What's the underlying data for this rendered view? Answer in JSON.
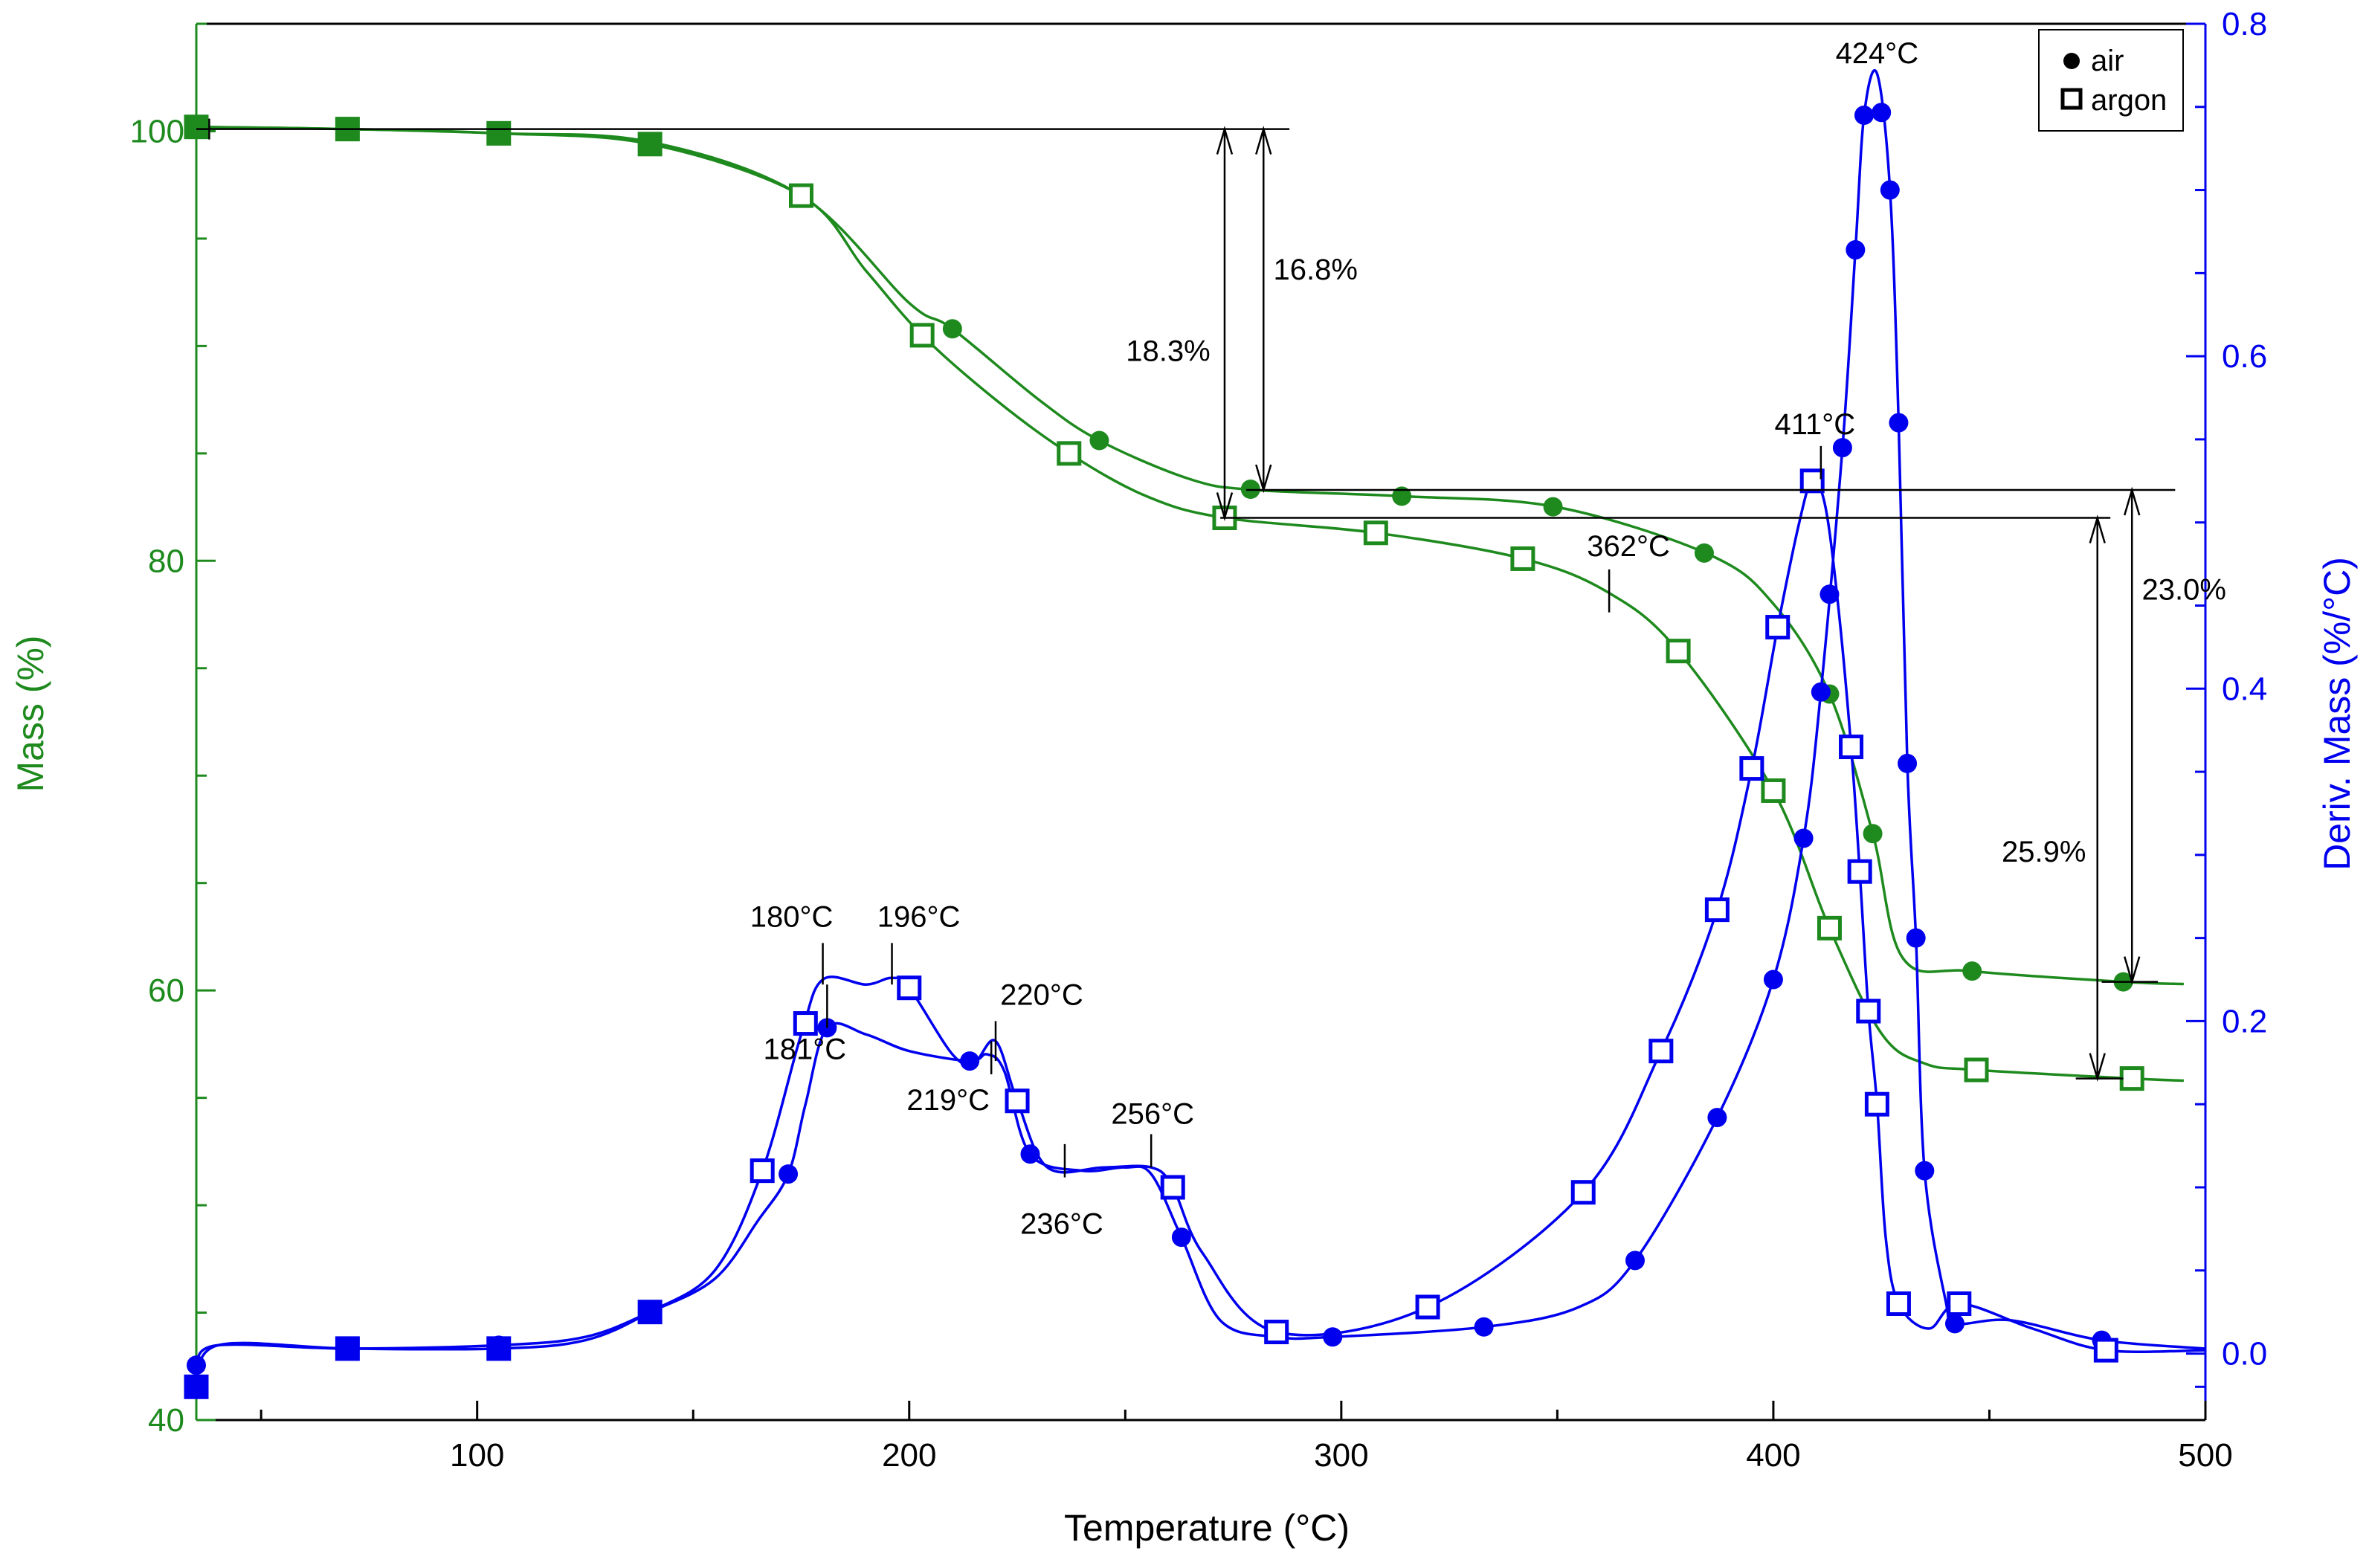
{
  "chart_data": {
    "type": "line",
    "title": "",
    "xlabel": "Temperature (°C)",
    "ylabel_left": "Mass (%)",
    "ylabel_right": "Deriv. Mass (%/°C)",
    "xlim": [
      35,
      500
    ],
    "ylim_left": [
      40,
      105
    ],
    "ylim_right": [
      -0.04,
      0.8
    ],
    "x_ticks": [
      100,
      200,
      300,
      400,
      500
    ],
    "y_ticks_left": [
      40,
      60,
      80,
      100
    ],
    "y_ticks_right": [
      0.0,
      0.2,
      0.4,
      0.6,
      0.8
    ],
    "y_tick_labels_right": [
      "0.0",
      "0.2",
      "0.4",
      "0.6",
      "0.8"
    ],
    "grid": false,
    "legend_position": "top-right",
    "legend": [
      {
        "label": "air",
        "marker": "filled-circle"
      },
      {
        "label": "argon",
        "marker": "open-square"
      }
    ],
    "colors": {
      "mass": "#1e8a1e",
      "deriv": "#0000ee",
      "annotation": "#000000"
    },
    "series": [
      {
        "name": "Mass air",
        "axis": "left",
        "marker": "circle",
        "x": [
          35,
          70,
          105,
          140,
          175,
          200,
          210,
          230,
          244,
          265,
          280,
          315,
          350,
          385,
          400,
          413,
          423,
          430,
          446,
          481,
          495
        ],
        "y": [
          100.2,
          100.1,
          99.9,
          99.5,
          97.0,
          92.0,
          90.8,
          87.5,
          85.6,
          83.8,
          83.3,
          83.0,
          82.5,
          80.3,
          78.0,
          73.8,
          67.3,
          61.5,
          60.9,
          60.4,
          60.3
        ],
        "marker_x": [
          35,
          70,
          105,
          140,
          175,
          210,
          244,
          279,
          314,
          349,
          384,
          413,
          423,
          446,
          481
        ]
      },
      {
        "name": "Mass argon",
        "axis": "left",
        "marker": "square",
        "x": [
          35,
          70,
          105,
          140,
          175,
          190,
          203,
          220,
          237,
          255,
          273,
          308,
          342,
          362,
          378,
          400,
          413,
          425,
          435,
          447,
          483,
          495
        ],
        "y": [
          100.2,
          100.1,
          99.9,
          99.4,
          97.0,
          93.5,
          90.5,
          87.5,
          85.0,
          83.0,
          82.0,
          81.3,
          80.1,
          78.5,
          75.8,
          69.3,
          62.9,
          58.0,
          56.6,
          56.3,
          55.9,
          55.8
        ],
        "marker_x": [
          35,
          70,
          105,
          140,
          175,
          203,
          237,
          273,
          308,
          342,
          378,
          400,
          413,
          447,
          483
        ]
      },
      {
        "name": "Deriv air",
        "axis": "right",
        "marker": "circle",
        "x": [
          35,
          40,
          70,
          105,
          125,
          140,
          155,
          165,
          172,
          176,
          181,
          190,
          200,
          214,
          218,
          222,
          228,
          240,
          250,
          256,
          263,
          272,
          285,
          298,
          333,
          355,
          368,
          387,
          400,
          407,
          411,
          416,
          419,
          421,
          424,
          427,
          429,
          431,
          433,
          435,
          440,
          442,
          455,
          476,
          500
        ],
        "y": [
          -0.007,
          0.005,
          0.003,
          0.005,
          0.01,
          0.025,
          0.045,
          0.08,
          0.108,
          0.15,
          0.196,
          0.192,
          0.182,
          0.176,
          0.18,
          0.17,
          0.12,
          0.11,
          0.112,
          0.108,
          0.07,
          0.02,
          0.01,
          0.01,
          0.016,
          0.028,
          0.056,
          0.142,
          0.225,
          0.31,
          0.398,
          0.545,
          0.664,
          0.745,
          0.77,
          0.7,
          0.56,
          0.355,
          0.25,
          0.11,
          0.03,
          0.018,
          0.02,
          0.008,
          0.003
        ],
        "marker_x": [
          35,
          70,
          105,
          140,
          172,
          181,
          214,
          228,
          263,
          298,
          333,
          368,
          387,
          400,
          407,
          411,
          413,
          416,
          419,
          421,
          425,
          427,
          429,
          431,
          433,
          435,
          442,
          476
        ]
      },
      {
        "name": "Deriv argon",
        "axis": "right",
        "marker": "square",
        "x": [
          35,
          40,
          70,
          105,
          125,
          140,
          155,
          166,
          175,
          180,
          190,
          196,
          200,
          210,
          215,
          220,
          225,
          232,
          245,
          256,
          261,
          268,
          285,
          320,
          356,
          374,
          387,
          395,
          401,
          406,
          409,
          412,
          415,
          418,
          420,
          422,
          424,
          426,
          429,
          436,
          443,
          460,
          477,
          500
        ],
        "y": [
          -0.02,
          0.005,
          0.003,
          0.003,
          0.008,
          0.025,
          0.05,
          0.11,
          0.192,
          0.225,
          0.222,
          0.226,
          0.22,
          0.18,
          0.175,
          0.188,
          0.152,
          0.112,
          0.112,
          0.112,
          0.1,
          0.06,
          0.013,
          0.028,
          0.097,
          0.182,
          0.267,
          0.352,
          0.437,
          0.5,
          0.525,
          0.51,
          0.45,
          0.365,
          0.29,
          0.206,
          0.15,
          0.07,
          0.03,
          0.015,
          0.03,
          0.015,
          0.002,
          0.002
        ],
        "marker_x": [
          35,
          70,
          105,
          140,
          166,
          176,
          200,
          225,
          261,
          285,
          320,
          356,
          374,
          387,
          395,
          401,
          409,
          418,
          420,
          422,
          424,
          429,
          443,
          477
        ]
      }
    ],
    "annotations": {
      "peak_labels": [
        "180°C",
        "196°C",
        "181°C",
        "220°C",
        "219°C",
        "256°C",
        "236°C",
        "362°C",
        "411°C",
        "424°C"
      ],
      "step_labels": [
        "18.3%",
        "16.8%",
        "23.0%",
        "25.9%"
      ]
    }
  }
}
